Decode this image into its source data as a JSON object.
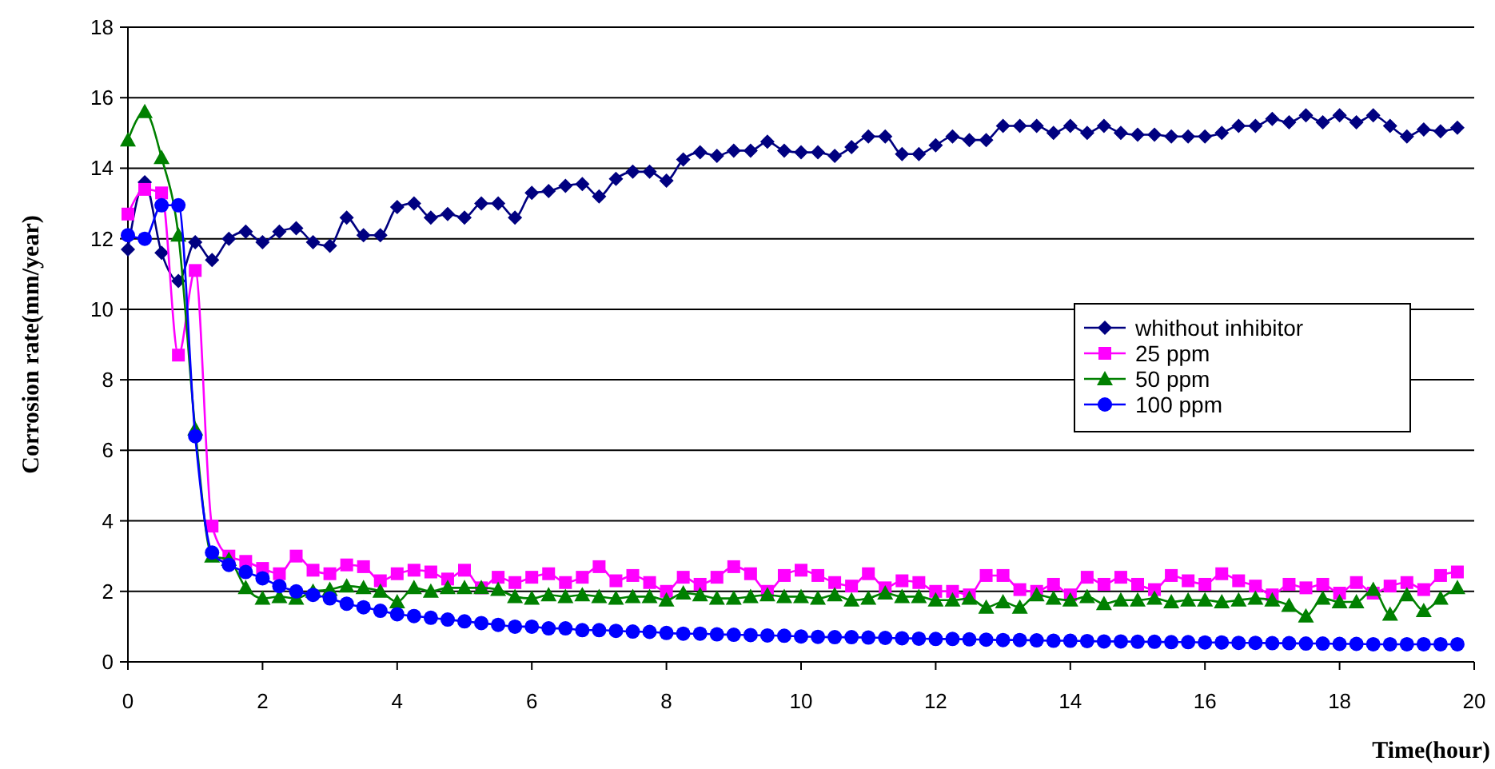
{
  "chart_data": {
    "type": "line",
    "xlabel": "Time(hour)",
    "ylabel": "Corrosion rate(mm/year)",
    "x": [
      0,
      0.25,
      0.5,
      0.75,
      1,
      1.25,
      1.5,
      1.75,
      2,
      2.25,
      2.5,
      2.75,
      3,
      3.25,
      3.5,
      3.75,
      4,
      4.25,
      4.5,
      4.75,
      5,
      5.25,
      5.5,
      5.75,
      6,
      6.25,
      6.5,
      6.75,
      7,
      7.25,
      7.5,
      7.75,
      8,
      8.25,
      8.5,
      8.75,
      9,
      9.25,
      9.5,
      9.75,
      10,
      10.25,
      10.5,
      10.75,
      11,
      11.25,
      11.5,
      11.75,
      12,
      12.25,
      12.5,
      12.75,
      13,
      13.25,
      13.5,
      13.75,
      14,
      14.25,
      14.5,
      14.75,
      15,
      15.25,
      15.5,
      15.75,
      16,
      16.25,
      16.5,
      16.75,
      17,
      17.25,
      17.5,
      17.75,
      18,
      18.25,
      18.5,
      18.75,
      19,
      19.25,
      19.5,
      19.75
    ],
    "series": [
      {
        "name": "whithout inhibitor",
        "color": "#000080",
        "marker": "diamond",
        "values": [
          11.7,
          13.6,
          11.6,
          10.8,
          11.9,
          11.4,
          12.0,
          12.2,
          11.9,
          12.2,
          12.3,
          11.9,
          11.8,
          12.6,
          12.1,
          12.1,
          12.9,
          13.0,
          12.6,
          12.7,
          12.6,
          13.0,
          13.0,
          12.6,
          13.3,
          13.35,
          13.5,
          13.55,
          13.2,
          13.7,
          13.9,
          13.9,
          13.65,
          14.25,
          14.45,
          14.35,
          14.5,
          14.5,
          14.75,
          14.5,
          14.45,
          14.45,
          14.35,
          14.6,
          14.9,
          14.9,
          14.4,
          14.4,
          14.65,
          14.9,
          14.8,
          14.8,
          15.2,
          15.2,
          15.2,
          15.0,
          15.2,
          15.0,
          15.2,
          15.0,
          14.95,
          14.95,
          14.9,
          14.9,
          14.9,
          15.0,
          15.2,
          15.2,
          15.4,
          15.3,
          15.5,
          15.3,
          15.5,
          15.3,
          15.5,
          15.2,
          14.9,
          15.1,
          15.05,
          15.15
        ]
      },
      {
        "name": "25 ppm",
        "color": "#ff00ff",
        "marker": "square",
        "values": [
          12.7,
          13.4,
          13.3,
          8.7,
          11.1,
          3.85,
          3.0,
          2.85,
          2.65,
          2.5,
          3.0,
          2.6,
          2.5,
          2.75,
          2.7,
          2.3,
          2.5,
          2.6,
          2.55,
          2.35,
          2.6,
          2.1,
          2.4,
          2.25,
          2.4,
          2.5,
          2.25,
          2.4,
          2.7,
          2.3,
          2.45,
          2.25,
          2.0,
          2.4,
          2.2,
          2.4,
          2.7,
          2.5,
          2.0,
          2.45,
          2.6,
          2.45,
          2.25,
          2.15,
          2.5,
          2.1,
          2.3,
          2.25,
          2.0,
          2.0,
          1.9,
          2.45,
          2.45,
          2.05,
          2.0,
          2.2,
          1.9,
          2.4,
          2.2,
          2.4,
          2.2,
          2.05,
          2.45,
          2.3,
          2.2,
          2.5,
          2.3,
          2.15,
          1.9,
          2.2,
          2.1,
          2.2,
          1.95,
          2.25,
          1.95,
          2.15,
          2.25,
          2.05,
          2.45,
          2.55
        ]
      },
      {
        "name": "50 ppm",
        "color": "#008000",
        "marker": "triangle",
        "values": [
          14.8,
          15.6,
          14.3,
          12.1,
          6.6,
          3.0,
          2.9,
          2.1,
          1.8,
          1.85,
          1.8,
          2.0,
          2.05,
          2.15,
          2.1,
          2.0,
          1.7,
          2.1,
          2.0,
          2.1,
          2.1,
          2.1,
          2.05,
          1.85,
          1.8,
          1.9,
          1.85,
          1.9,
          1.85,
          1.8,
          1.85,
          1.85,
          1.75,
          1.95,
          1.9,
          1.8,
          1.8,
          1.85,
          1.9,
          1.85,
          1.85,
          1.8,
          1.9,
          1.75,
          1.8,
          1.95,
          1.85,
          1.85,
          1.75,
          1.75,
          1.8,
          1.55,
          1.7,
          1.55,
          1.9,
          1.8,
          1.75,
          1.85,
          1.65,
          1.75,
          1.75,
          1.8,
          1.7,
          1.75,
          1.75,
          1.7,
          1.75,
          1.8,
          1.75,
          1.6,
          1.3,
          1.8,
          1.7,
          1.7,
          2.05,
          1.35,
          1.9,
          1.45,
          1.8,
          2.1
        ]
      },
      {
        "name": "100 ppm",
        "color": "#0000ff",
        "marker": "circle",
        "values": [
          12.1,
          12.0,
          12.95,
          12.95,
          6.4,
          3.1,
          2.75,
          2.55,
          2.37,
          2.15,
          2.0,
          1.9,
          1.8,
          1.65,
          1.55,
          1.45,
          1.35,
          1.3,
          1.25,
          1.2,
          1.15,
          1.1,
          1.05,
          1.0,
          1.0,
          0.95,
          0.95,
          0.9,
          0.9,
          0.88,
          0.86,
          0.85,
          0.82,
          0.8,
          0.8,
          0.78,
          0.77,
          0.76,
          0.75,
          0.74,
          0.72,
          0.71,
          0.7,
          0.7,
          0.69,
          0.68,
          0.67,
          0.66,
          0.65,
          0.65,
          0.64,
          0.63,
          0.62,
          0.62,
          0.61,
          0.6,
          0.6,
          0.59,
          0.58,
          0.58,
          0.57,
          0.57,
          0.56,
          0.56,
          0.55,
          0.55,
          0.54,
          0.54,
          0.53,
          0.53,
          0.52,
          0.52,
          0.51,
          0.51,
          0.5,
          0.5,
          0.5,
          0.5,
          0.5,
          0.5
        ]
      }
    ],
    "xlim": [
      0,
      20
    ],
    "xticks": [
      0,
      2,
      4,
      6,
      8,
      10,
      12,
      14,
      16,
      18,
      20
    ],
    "ylim": [
      0,
      18
    ],
    "yticks": [
      0,
      2,
      4,
      6,
      8,
      10,
      12,
      14,
      16,
      18
    ],
    "grid": "y",
    "legend": "right"
  }
}
